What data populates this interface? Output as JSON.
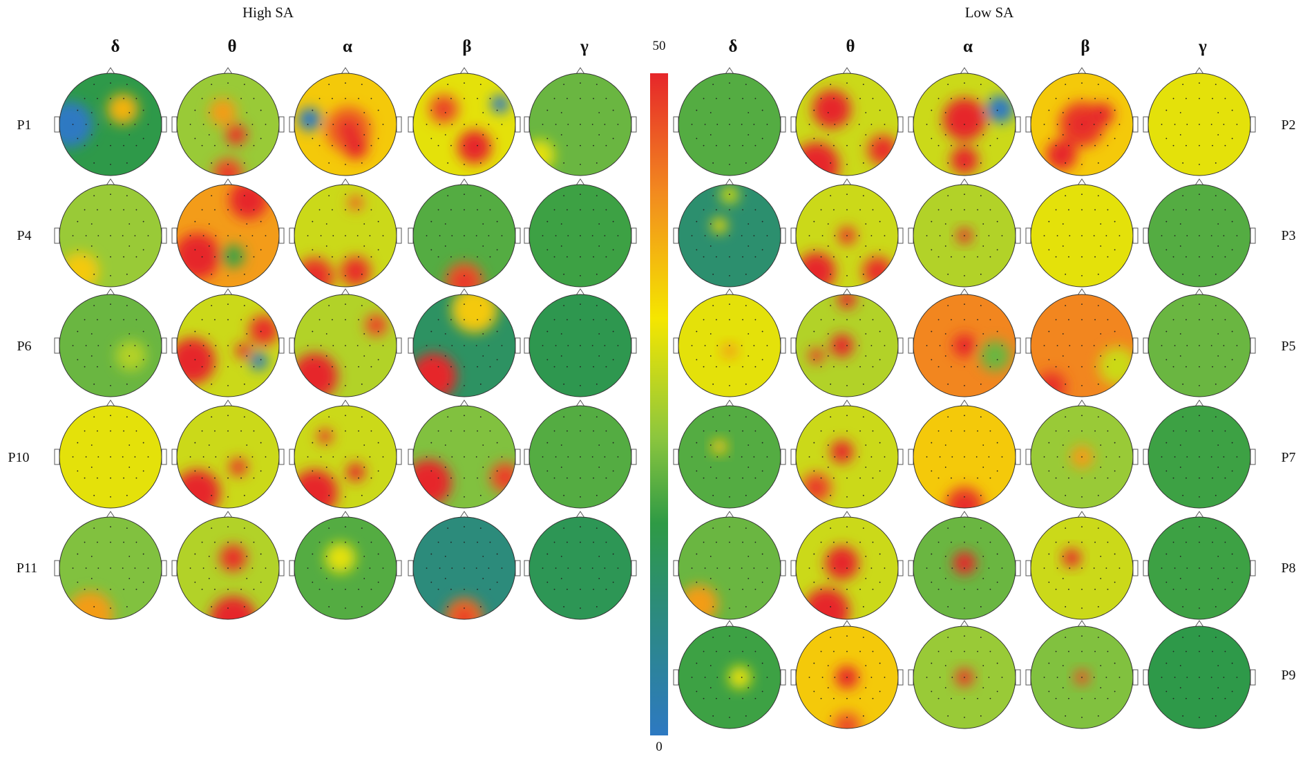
{
  "groups": [
    {
      "title": "High SA",
      "bands": [
        "δ",
        "θ",
        "α",
        "β",
        "γ"
      ],
      "participants": [
        "P1",
        "P4",
        "P6",
        "P10",
        "P11"
      ]
    },
    {
      "title": "Low SA",
      "bands": [
        "δ",
        "θ",
        "α",
        "β",
        "γ"
      ],
      "participants": [
        "P2",
        "P3",
        "P5",
        "P7",
        "P8",
        "P9"
      ]
    }
  ],
  "colorbar": {
    "max_label": "50",
    "min_label": "0",
    "colors": [
      "#2d79c2",
      "#2c8c78",
      "#2e9a45",
      "#8cc63e",
      "#f5e600",
      "#f28a1f",
      "#e6262a"
    ]
  },
  "maps": {
    "High SA": [
      [
        {
          "base": 16,
          "spots": [
            [
              0.62,
              0.35,
              0.2,
              38
            ],
            [
              0.1,
              0.5,
              0.3,
              -6
            ]
          ]
        },
        {
          "base": 26,
          "spots": [
            [
              0.45,
              0.38,
              0.18,
              40
            ],
            [
              0.58,
              0.6,
              0.14,
              48
            ],
            [
              0.5,
              0.98,
              0.2,
              46
            ]
          ]
        },
        {
          "base": 36,
          "spots": [
            [
              0.53,
              0.55,
              0.3,
              45
            ],
            [
              0.6,
              0.72,
              0.16,
              50
            ],
            [
              0.15,
              0.45,
              0.15,
              -10
            ]
          ]
        },
        {
          "base": 32,
          "spots": [
            [
              0.6,
              0.72,
              0.22,
              50
            ],
            [
              0.3,
              0.35,
              0.2,
              45
            ],
            [
              0.85,
              0.3,
              0.12,
              -10
            ]
          ]
        },
        {
          "base": 22,
          "spots": [
            [
              0.1,
              0.8,
              0.2,
              32
            ]
          ]
        }
      ],
      [
        {
          "base": 26,
          "spots": [
            [
              0.2,
              0.85,
              0.25,
              36
            ]
          ]
        },
        {
          "base": 40,
          "spots": [
            [
              0.2,
              0.7,
              0.3,
              50
            ],
            [
              0.7,
              0.15,
              0.25,
              50
            ],
            [
              0.55,
              0.7,
              0.15,
              18
            ]
          ]
        },
        {
          "base": 30,
          "spots": [
            [
              0.2,
              0.9,
              0.25,
              48
            ],
            [
              0.6,
              0.85,
              0.2,
              48
            ],
            [
              0.6,
              0.18,
              0.1,
              44
            ]
          ]
        },
        {
          "base": 20,
          "spots": [
            [
              0.5,
              0.95,
              0.25,
              46
            ]
          ]
        },
        {
          "base": 18,
          "spots": []
        }
      ],
      [
        {
          "base": 22,
          "spots": [
            [
              0.7,
              0.6,
              0.2,
              28
            ]
          ]
        },
        {
          "base": 30,
          "spots": [
            [
              0.15,
              0.65,
              0.3,
              50
            ],
            [
              0.65,
              0.55,
              0.1,
              50
            ],
            [
              0.8,
              0.65,
              0.12,
              2
            ],
            [
              0.85,
              0.35,
              0.2,
              48
            ]
          ]
        },
        {
          "base": 28,
          "spots": [
            [
              0.2,
              0.8,
              0.3,
              50
            ],
            [
              0.8,
              0.3,
              0.15,
              46
            ]
          ]
        },
        {
          "base": 12,
          "spots": [
            [
              0.2,
              0.8,
              0.3,
              50
            ],
            [
              0.6,
              0.15,
              0.3,
              36
            ]
          ]
        },
        {
          "base": 15,
          "spots": []
        }
      ],
      [
        {
          "base": 32,
          "spots": []
        },
        {
          "base": 30,
          "spots": [
            [
              0.2,
              0.85,
              0.3,
              50
            ],
            [
              0.6,
              0.6,
              0.12,
              48
            ]
          ]
        },
        {
          "base": 30,
          "spots": [
            [
              0.2,
              0.85,
              0.3,
              50
            ],
            [
              0.6,
              0.65,
              0.12,
              50
            ],
            [
              0.3,
              0.3,
              0.1,
              48
            ]
          ]
        },
        {
          "base": 24,
          "spots": [
            [
              0.15,
              0.75,
              0.3,
              50
            ],
            [
              0.9,
              0.7,
              0.2,
              46
            ]
          ]
        },
        {
          "base": 20,
          "spots": []
        }
      ],
      [
        {
          "base": 24,
          "spots": [
            [
              0.3,
              0.95,
              0.3,
              40
            ]
          ]
        },
        {
          "base": 28,
          "spots": [
            [
              0.55,
              0.4,
              0.18,
              48
            ],
            [
              0.55,
              1.0,
              0.3,
              50
            ]
          ]
        },
        {
          "base": 20,
          "spots": [
            [
              0.45,
              0.4,
              0.2,
              32
            ]
          ]
        },
        {
          "base": 8,
          "spots": [
            [
              0.5,
              0.98,
              0.25,
              44
            ]
          ]
        },
        {
          "base": 14,
          "spots": []
        }
      ]
    ],
    "Low SA": [
      [
        {
          "base": 20,
          "spots": []
        },
        {
          "base": 30,
          "spots": [
            [
              0.35,
              0.35,
              0.25,
              50
            ],
            [
              0.2,
              0.9,
              0.3,
              50
            ],
            [
              0.85,
              0.75,
              0.2,
              48
            ]
          ]
        },
        {
          "base": 30,
          "spots": [
            [
              0.5,
              0.45,
              0.28,
              50
            ],
            [
              0.5,
              0.85,
              0.18,
              50
            ],
            [
              0.85,
              0.35,
              0.18,
              0
            ]
          ]
        },
        {
          "base": 36,
          "spots": [
            [
              0.5,
              0.5,
              0.3,
              48
            ],
            [
              0.7,
              0.4,
              0.15,
              50
            ],
            [
              0.3,
              0.8,
              0.2,
              50
            ]
          ]
        },
        {
          "base": 32,
          "spots": []
        }
      ],
      [
        {
          "base": 10,
          "spots": [
            [
              0.4,
              0.4,
              0.1,
              34
            ],
            [
              0.5,
              0.1,
              0.12,
              30
            ]
          ]
        },
        {
          "base": 30,
          "spots": [
            [
              0.5,
              0.5,
              0.12,
              48
            ],
            [
              0.2,
              0.85,
              0.25,
              50
            ],
            [
              0.8,
              0.85,
              0.2,
              48
            ]
          ]
        },
        {
          "base": 28,
          "spots": [
            [
              0.5,
              0.5,
              0.1,
              50
            ]
          ]
        },
        {
          "base": 32,
          "spots": []
        },
        {
          "base": 20,
          "spots": []
        }
      ],
      [
        {
          "base": 32,
          "spots": [
            [
              0.5,
              0.55,
              0.1,
              40
            ]
          ]
        },
        {
          "base": 28,
          "spots": [
            [
              0.45,
              0.5,
              0.15,
              50
            ],
            [
              0.5,
              0.05,
              0.12,
              50
            ],
            [
              0.2,
              0.6,
              0.1,
              48
            ]
          ]
        },
        {
          "base": 42,
          "spots": [
            [
              0.5,
              0.5,
              0.15,
              50
            ],
            [
              0.8,
              0.6,
              0.2,
              22
            ]
          ]
        },
        {
          "base": 42,
          "spots": [
            [
              0.85,
              0.7,
              0.25,
              30
            ],
            [
              0.2,
              0.9,
              0.2,
              48
            ]
          ]
        },
        {
          "base": 22,
          "spots": []
        }
      ],
      [
        {
          "base": 20,
          "spots": [
            [
              0.4,
              0.4,
              0.1,
              36
            ]
          ]
        },
        {
          "base": 30,
          "spots": [
            [
              0.45,
              0.45,
              0.15,
              50
            ],
            [
              0.2,
              0.8,
              0.2,
              46
            ]
          ]
        },
        {
          "base": 36,
          "spots": [
            [
              0.5,
              0.98,
              0.25,
              48
            ]
          ]
        },
        {
          "base": 26,
          "spots": [
            [
              0.5,
              0.5,
              0.15,
              40
            ]
          ]
        },
        {
          "base": 18,
          "spots": []
        }
      ],
      [
        {
          "base": 22,
          "spots": [
            [
              0.2,
              0.85,
              0.25,
              40
            ]
          ]
        },
        {
          "base": 30,
          "spots": [
            [
              0.45,
              0.45,
              0.22,
              50
            ],
            [
              0.3,
              0.92,
              0.3,
              50
            ]
          ]
        },
        {
          "base": 22,
          "spots": [
            [
              0.5,
              0.45,
              0.15,
              50
            ]
          ]
        },
        {
          "base": 30,
          "spots": [
            [
              0.4,
              0.4,
              0.12,
              50
            ]
          ]
        },
        {
          "base": 18,
          "spots": []
        }
      ],
      [
        {
          "base": 18,
          "spots": [
            [
              0.6,
              0.5,
              0.15,
              32
            ]
          ]
        },
        {
          "base": 36,
          "spots": [
            [
              0.5,
              0.5,
              0.15,
              50
            ],
            [
              0.5,
              0.98,
              0.2,
              44
            ]
          ]
        },
        {
          "base": 26,
          "spots": [
            [
              0.5,
              0.5,
              0.12,
              48
            ]
          ]
        },
        {
          "base": 24,
          "spots": [
            [
              0.5,
              0.5,
              0.1,
              46
            ]
          ]
        },
        {
          "base": 16,
          "spots": []
        }
      ]
    ]
  }
}
